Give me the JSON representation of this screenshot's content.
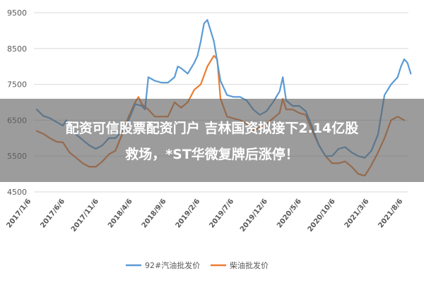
{
  "chart_data": {
    "type": "line",
    "title": "",
    "xlabel": "",
    "ylabel": "",
    "ylim": [
      4500,
      9500
    ],
    "yticks": [
      9500,
      8500,
      7500,
      6500,
      5500,
      4500
    ],
    "xticks": [
      "2017/1/6",
      "2017/6/6",
      "2017/11/6",
      "2018/4/6",
      "2018/9/6",
      "2019/2/6",
      "2019/7/6",
      "2019/12/6",
      "2020/5/6",
      "2020/10/6",
      "2021/3/6",
      "2021/8/6"
    ],
    "grid": "horizontal",
    "legend_position": "bottom",
    "x_index_range": [
      0,
      56
    ],
    "series": [
      {
        "name": "92#汽油批发价",
        "color": "#5b9bd5",
        "points": [
          [
            0,
            6800
          ],
          [
            1,
            6620
          ],
          [
            2,
            6560
          ],
          [
            3,
            6450
          ],
          [
            3.5,
            6400
          ],
          [
            4,
            6350
          ],
          [
            4.5,
            6500
          ],
          [
            5,
            6320
          ],
          [
            6,
            6100
          ],
          [
            7,
            5950
          ],
          [
            8,
            5800
          ],
          [
            9,
            5700
          ],
          [
            10,
            5800
          ],
          [
            11,
            6000
          ],
          [
            12,
            6000
          ],
          [
            13,
            6200
          ],
          [
            14,
            6500
          ],
          [
            15,
            6950
          ],
          [
            16,
            6900
          ],
          [
            16.5,
            6800
          ],
          [
            17,
            7700
          ],
          [
            18,
            7600
          ],
          [
            19,
            7550
          ],
          [
            20,
            7550
          ],
          [
            21,
            7700
          ],
          [
            21.5,
            8000
          ],
          [
            22,
            7950
          ],
          [
            23,
            7800
          ],
          [
            24,
            8100
          ],
          [
            24.5,
            8300
          ],
          [
            25,
            8700
          ],
          [
            25.5,
            9200
          ],
          [
            26,
            9300
          ],
          [
            27,
            8700
          ],
          [
            28,
            7600
          ],
          [
            29,
            7200
          ],
          [
            30,
            7150
          ],
          [
            31,
            7150
          ],
          [
            32,
            7050
          ],
          [
            33,
            6800
          ],
          [
            34,
            6650
          ],
          [
            35,
            6750
          ],
          [
            36,
            7000
          ],
          [
            37,
            7300
          ],
          [
            37.5,
            7700
          ],
          [
            38,
            7050
          ],
          [
            39,
            6900
          ],
          [
            40,
            6900
          ],
          [
            41,
            6750
          ],
          [
            42,
            6300
          ],
          [
            43,
            5800
          ],
          [
            44,
            5500
          ],
          [
            45,
            5500
          ],
          [
            46,
            5700
          ],
          [
            47,
            5750
          ],
          [
            48,
            5600
          ],
          [
            49,
            5500
          ],
          [
            50,
            5450
          ],
          [
            51,
            5650
          ],
          [
            52,
            6100
          ],
          [
            53,
            7200
          ],
          [
            54,
            7500
          ],
          [
            55,
            7700
          ],
          [
            55.5,
            8000
          ],
          [
            56,
            8200
          ],
          [
            56.5,
            8100
          ],
          [
            57,
            7800
          ]
        ]
      },
      {
        "name": "柴油批发价",
        "color": "#ed7d31",
        "points": [
          [
            0,
            6200
          ],
          [
            1,
            6120
          ],
          [
            2,
            6000
          ],
          [
            3,
            5900
          ],
          [
            4,
            5880
          ],
          [
            5,
            5600
          ],
          [
            6,
            5450
          ],
          [
            7,
            5300
          ],
          [
            8,
            5200
          ],
          [
            9,
            5200
          ],
          [
            10,
            5350
          ],
          [
            11,
            5550
          ],
          [
            12,
            5650
          ],
          [
            13,
            6100
          ],
          [
            14,
            6600
          ],
          [
            15,
            7000
          ],
          [
            15.5,
            7150
          ],
          [
            16,
            6950
          ],
          [
            17,
            6800
          ],
          [
            18,
            6600
          ],
          [
            19,
            6600
          ],
          [
            20,
            6600
          ],
          [
            21,
            7000
          ],
          [
            22,
            6850
          ],
          [
            23,
            7000
          ],
          [
            24,
            7350
          ],
          [
            25,
            7500
          ],
          [
            26,
            8000
          ],
          [
            27,
            8300
          ],
          [
            27.5,
            8200
          ],
          [
            28,
            7100
          ],
          [
            29,
            6600
          ],
          [
            30,
            6550
          ],
          [
            31,
            6500
          ],
          [
            32,
            6400
          ],
          [
            33,
            6200
          ],
          [
            34,
            6300
          ],
          [
            35,
            6400
          ],
          [
            36,
            6550
          ],
          [
            37,
            6700
          ],
          [
            37.5,
            7100
          ],
          [
            38,
            6800
          ],
          [
            39,
            6800
          ],
          [
            40,
            6700
          ],
          [
            41,
            6650
          ],
          [
            42,
            6200
          ],
          [
            43,
            5800
          ],
          [
            44,
            5500
          ],
          [
            45,
            5300
          ],
          [
            46,
            5300
          ],
          [
            47,
            5350
          ],
          [
            48,
            5200
          ],
          [
            49,
            5000
          ],
          [
            50,
            4950
          ],
          [
            51,
            5250
          ],
          [
            52,
            5600
          ],
          [
            53,
            6000
          ],
          [
            54,
            6500
          ],
          [
            55,
            6600
          ],
          [
            56,
            6500
          ]
        ]
      }
    ]
  },
  "banner": {
    "line1": "配资可信股票配资门户 吉林国资拟接下2.14亿股",
    "line2": "救场，*ST华微复牌后涨停！"
  }
}
